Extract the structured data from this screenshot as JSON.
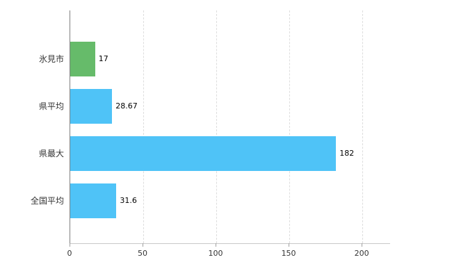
{
  "chart_data": {
    "type": "bar",
    "orientation": "horizontal",
    "title": "",
    "xlabel": "",
    "ylabel": "",
    "categories": [
      "氷見市",
      "県平均",
      "県最大",
      "全国平均"
    ],
    "values": [
      17,
      28.67,
      182,
      31.6
    ],
    "value_labels": [
      "17",
      "28.67",
      "182",
      "31.6"
    ],
    "bar_colors": [
      "#66BB6A",
      "#4FC3F7",
      "#4FC3F7",
      "#4FC3F7"
    ],
    "x_ticks": [
      0,
      50,
      100,
      150,
      200
    ],
    "x_tick_labels": [
      "0",
      "50",
      "100",
      "150",
      "200"
    ],
    "xlim": [
      0,
      219
    ],
    "grid": "vertical-dashed",
    "legend_position": "none",
    "background_color": "#ffffff",
    "gridline_color": "#dddddd",
    "axis_color": "#808080"
  }
}
